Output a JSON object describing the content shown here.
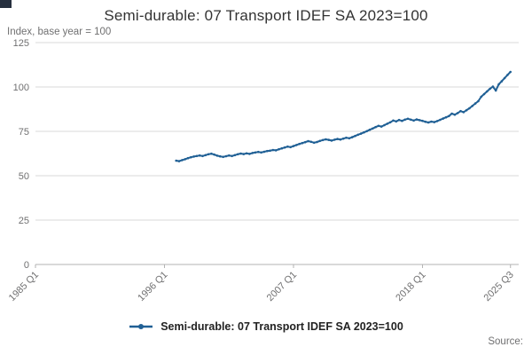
{
  "chart_data": {
    "type": "line",
    "title": "Semi-durable: 07 Transport IDEF SA 2023=100",
    "ylabel": "Index, base year = 100",
    "xlabel": "",
    "ylim": [
      0,
      125
    ],
    "xlim": [
      1985.0,
      2026.2
    ],
    "y_ticks": [
      0,
      25,
      50,
      75,
      100,
      125
    ],
    "x_ticks": [
      {
        "label": "1985 Q1",
        "year": 1985.0
      },
      {
        "label": "1996 Q1",
        "year": 1996.0
      },
      {
        "label": "2007 Q1",
        "year": 2007.0
      },
      {
        "label": "2018 Q1",
        "year": 2018.0
      },
      {
        "label": "2025 Q3",
        "year": 2025.5
      }
    ],
    "grid": "horizontal",
    "legend_position": "bottom",
    "source_label": "Source:",
    "colors": {
      "line": "#206095",
      "gridline": "#d9d9d9",
      "axis": "#b3b3b3",
      "tick_text": "#707071"
    },
    "series": [
      {
        "name": "Semi-durable: 07 Transport IDEF SA 2023=100",
        "color": "#206095",
        "x_start": "1997 Q1",
        "frequency": "quarterly",
        "values": [
          58.5,
          58.2,
          58.8,
          59.3,
          59.9,
          60.4,
          60.8,
          61.1,
          61.4,
          61.1,
          61.6,
          62.1,
          62.4,
          61.9,
          61.3,
          60.9,
          60.6,
          61.0,
          61.4,
          61.1,
          61.6,
          62.1,
          62.5,
          62.2,
          62.6,
          62.3,
          62.8,
          63.1,
          63.4,
          63.1,
          63.5,
          63.9,
          64.1,
          64.5,
          64.3,
          64.9,
          65.4,
          65.9,
          66.4,
          66.1,
          66.7,
          67.3,
          67.9,
          68.4,
          68.9,
          69.5,
          69.1,
          68.6,
          69.0,
          69.6,
          70.1,
          70.5,
          70.2,
          69.8,
          70.3,
          70.7,
          70.4,
          70.9,
          71.4,
          71.1,
          71.7,
          72.4,
          73.1,
          73.7,
          74.4,
          75.1,
          75.9,
          76.6,
          77.4,
          78.1,
          77.7,
          78.5,
          79.3,
          80.1,
          81.1,
          80.6,
          81.4,
          80.9,
          81.6,
          82.1,
          81.6,
          81.1,
          81.7,
          81.3,
          80.9,
          80.4,
          80.0,
          80.5,
          80.2,
          80.8,
          81.5,
          82.2,
          82.9,
          83.6,
          85.0,
          84.4,
          85.3,
          86.4,
          85.8,
          86.9,
          88.0,
          89.3,
          90.7,
          92.0,
          94.5,
          96.0,
          97.5,
          99.0,
          100.2,
          98.0,
          101.5,
          103.2,
          105.0,
          106.8,
          108.5
        ]
      }
    ]
  }
}
